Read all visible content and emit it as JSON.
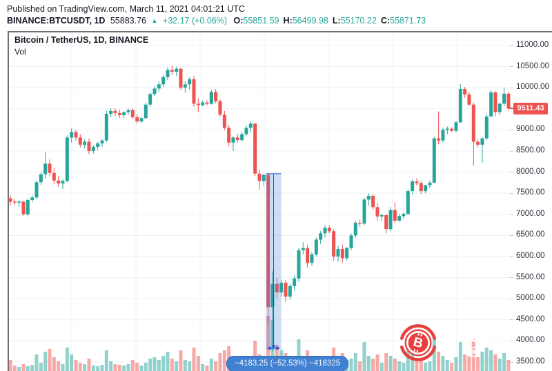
{
  "header": {
    "published": "Published on TradingView.com, March 11, 2021 04:01:21 UTC",
    "ticker": {
      "symbol_interval": "BINANCE:BTCUSDT, 1D",
      "last": "55883.76",
      "direction": "▲",
      "change": "+32.17 (+0.06%)",
      "ohlc": [
        {
          "label": "O:",
          "value": "55851.59"
        },
        {
          "label": "H:",
          "value": "56499.98"
        },
        {
          "label": "L:",
          "value": "55170.22"
        },
        {
          "label": "C:",
          "value": "55871.73"
        }
      ]
    }
  },
  "chart": {
    "title": "Bitcoin / TetherUS, 1D, BINANCE",
    "indicator_label": "Vol",
    "price_tag": {
      "value": "9511.43",
      "price": 9511.43,
      "color": "#ef5350"
    },
    "measure_tooltip": {
      "text": "−4183.25 (−52.53%) −418325",
      "bg": "#4181d2"
    },
    "watermark": {
      "text_primary": "Bitcoin",
      "text_secondary": "区",
      "logo": "bitcoin-logo",
      "logo_color": "#e9403d"
    },
    "colors": {
      "up": "#26a69a",
      "down": "#ef5350",
      "vol_up": "rgba(38,166,154,0.5)",
      "vol_down": "rgba(239,83,80,0.5)",
      "grid": "#eef0f4",
      "tag_red": "#ef5350",
      "measure_fill": "rgba(70,130,216,0.27)",
      "measure_line": "#1d4fc4",
      "text": "#131722"
    }
  },
  "chart_data": {
    "type": "candlestick",
    "symbol": "BTCUSDT",
    "interval": "1D",
    "exchange": "BINANCE",
    "title": "Bitcoin / TetherUS, 1D, BINANCE",
    "y_axis": {
      "side": "right",
      "grid": true,
      "ticks": [
        {
          "price": 11000,
          "label": "11000.00"
        },
        {
          "price": 10500,
          "label": "10500.00"
        },
        {
          "price": 10000,
          "label": "10000.00"
        },
        {
          "price": 9500,
          "label": ""
        },
        {
          "price": 9000,
          "label": "9000.00"
        },
        {
          "price": 8500,
          "label": "8500.00"
        },
        {
          "price": 8000,
          "label": "8000.00"
        },
        {
          "price": 7500,
          "label": "7500.00"
        },
        {
          "price": 7000,
          "label": "7000.00"
        },
        {
          "price": 6500,
          "label": "6500.00"
        },
        {
          "price": 6000,
          "label": "6000.00"
        },
        {
          "price": 5500,
          "label": "5500.00"
        },
        {
          "price": 5000,
          "label": "5000.00"
        },
        {
          "price": 4500,
          "label": "4500.00"
        },
        {
          "price": 4000,
          "label": "4000.00"
        },
        {
          "price": 3500,
          "label": "3500.00"
        }
      ]
    },
    "last_close": 9511.43,
    "measure": {
      "from_index": 59,
      "to_index": 61,
      "from_price": 7963.5,
      "to_price": 3780.25,
      "change": "−4183.25",
      "change_pct": "−52.53%",
      "extra": "−418325"
    },
    "candles": [
      [
        7380,
        7450,
        7200,
        7300
      ],
      [
        7300,
        7360,
        7220,
        7280
      ],
      [
        7280,
        7330,
        7180,
        7300
      ],
      [
        7300,
        7320,
        6960,
        7000
      ],
      [
        7000,
        7380,
        6950,
        7340
      ],
      [
        7340,
        7450,
        7290,
        7400
      ],
      [
        7400,
        7800,
        7360,
        7760
      ],
      [
        7760,
        8000,
        7700,
        7950
      ],
      [
        7950,
        8480,
        7850,
        8200
      ],
      [
        8200,
        8300,
        7900,
        7980
      ],
      [
        7980,
        8100,
        7720,
        7800
      ],
      [
        7800,
        7900,
        7650,
        7730
      ],
      [
        7730,
        7830,
        7600,
        7790
      ],
      [
        7790,
        8870,
        7760,
        8820
      ],
      [
        8820,
        9030,
        8700,
        8950
      ],
      [
        8950,
        9000,
        8750,
        8820
      ],
      [
        8820,
        8900,
        8590,
        8650
      ],
      [
        8650,
        8780,
        8560,
        8720
      ],
      [
        8720,
        8800,
        8420,
        8500
      ],
      [
        8500,
        8640,
        8440,
        8600
      ],
      [
        8600,
        8720,
        8520,
        8680
      ],
      [
        8680,
        8780,
        8600,
        8750
      ],
      [
        8750,
        9460,
        8720,
        9380
      ],
      [
        9380,
        9520,
        9300,
        9450
      ],
      [
        9450,
        9510,
        9330,
        9400
      ],
      [
        9400,
        9480,
        9290,
        9350
      ],
      [
        9350,
        9440,
        9280,
        9420
      ],
      [
        9420,
        9500,
        9360,
        9470
      ],
      [
        9470,
        9510,
        9250,
        9300
      ],
      [
        9300,
        9380,
        9150,
        9200
      ],
      [
        9200,
        9310,
        9170,
        9280
      ],
      [
        9280,
        9650,
        9260,
        9600
      ],
      [
        9600,
        9900,
        9550,
        9850
      ],
      [
        9850,
        10050,
        9800,
        9980
      ],
      [
        9980,
        10150,
        9900,
        10080
      ],
      [
        10080,
        10300,
        10020,
        10250
      ],
      [
        10250,
        10480,
        10180,
        10420
      ],
      [
        10420,
        10530,
        10300,
        10380
      ],
      [
        10380,
        10500,
        10280,
        10450
      ],
      [
        10450,
        10470,
        9950,
        10000
      ],
      [
        10000,
        10150,
        9880,
        10080
      ],
      [
        10080,
        10250,
        9960,
        10200
      ],
      [
        10200,
        10280,
        9550,
        9620
      ],
      [
        9620,
        9750,
        9420,
        9590
      ],
      [
        9590,
        9700,
        9560,
        9650
      ],
      [
        9650,
        9700,
        9580,
        9620
      ],
      [
        9620,
        9950,
        9600,
        9900
      ],
      [
        9900,
        9970,
        9630,
        9680
      ],
      [
        9680,
        9720,
        9310,
        9360
      ],
      [
        9360,
        9450,
        8990,
        9050
      ],
      [
        9050,
        9120,
        8610,
        8700
      ],
      [
        8700,
        8850,
        8500,
        8820
      ],
      [
        8820,
        8900,
        8700,
        8760
      ],
      [
        8760,
        8950,
        8720,
        8900
      ],
      [
        8900,
        9100,
        8850,
        9050
      ],
      [
        9050,
        9200,
        8950,
        9150
      ],
      [
        9150,
        9160,
        7900,
        7965
      ],
      [
        7965,
        8050,
        7585,
        7790
      ],
      [
        7790,
        7960,
        7680,
        7935
      ],
      [
        7935,
        7970,
        4410,
        4800
      ],
      [
        4800,
        5650,
        3750,
        5350
      ],
      [
        5350,
        5500,
        5000,
        5150
      ],
      [
        5150,
        5450,
        5050,
        5380
      ],
      [
        5380,
        5450,
        4930,
        5050
      ],
      [
        5050,
        5350,
        4980,
        5300
      ],
      [
        5300,
        5550,
        5200,
        5480
      ],
      [
        5480,
        6200,
        5400,
        6150
      ],
      [
        6150,
        6340,
        6050,
        6200
      ],
      [
        6200,
        6280,
        5740,
        5850
      ],
      [
        5850,
        6100,
        5780,
        6050
      ],
      [
        6050,
        6450,
        6000,
        6400
      ],
      [
        6400,
        6600,
        6300,
        6550
      ],
      [
        6550,
        6740,
        6450,
        6680
      ],
      [
        6680,
        6740,
        6550,
        6600
      ],
      [
        6600,
        6650,
        5900,
        6000
      ],
      [
        6000,
        6250,
        5880,
        6180
      ],
      [
        6180,
        6280,
        5850,
        5960
      ],
      [
        5960,
        6230,
        5900,
        6200
      ],
      [
        6200,
        6550,
        6150,
        6500
      ],
      [
        6500,
        6850,
        6450,
        6800
      ],
      [
        6800,
        6880,
        6700,
        6780
      ],
      [
        6780,
        7390,
        6750,
        7350
      ],
      [
        7350,
        7500,
        7200,
        7440
      ],
      [
        7440,
        7480,
        7100,
        7170
      ],
      [
        7170,
        7280,
        6850,
        6950
      ],
      [
        6950,
        7020,
        6850,
        6980
      ],
      [
        6980,
        7000,
        6550,
        6650
      ],
      [
        6650,
        7170,
        6600,
        7100
      ],
      [
        7100,
        7280,
        6790,
        6850
      ],
      [
        6850,
        7010,
        6820,
        6960
      ],
      [
        6960,
        7050,
        6900,
        7010
      ],
      [
        7010,
        7600,
        6980,
        7550
      ],
      [
        7550,
        7820,
        7480,
        7780
      ],
      [
        7780,
        7850,
        7680,
        7740
      ],
      [
        7740,
        7790,
        7480,
        7550
      ],
      [
        7550,
        7700,
        7500,
        7690
      ],
      [
        7690,
        7800,
        7620,
        7750
      ],
      [
        7750,
        8830,
        7740,
        8800
      ],
      [
        8800,
        9440,
        8660,
        8750
      ],
      [
        8750,
        9050,
        8700,
        9000
      ],
      [
        9000,
        9080,
        8900,
        9030
      ],
      [
        9030,
        9060,
        8950,
        8980
      ],
      [
        8980,
        9210,
        8950,
        9180
      ],
      [
        9180,
        10090,
        9160,
        9970
      ],
      [
        9970,
        10020,
        9760,
        9840
      ],
      [
        9840,
        9900,
        9570,
        9600
      ],
      [
        9600,
        9650,
        8150,
        8720
      ],
      [
        8720,
        8780,
        8590,
        8650
      ],
      [
        8650,
        8830,
        8230,
        8800
      ],
      [
        8800,
        9370,
        8760,
        9320
      ],
      [
        9320,
        9940,
        9300,
        9890
      ],
      [
        9890,
        9920,
        9320,
        9420
      ],
      [
        9420,
        9650,
        9350,
        9620
      ],
      [
        9620,
        10000,
        9560,
        9860
      ],
      [
        9860,
        9900,
        9480,
        9511.43
      ]
    ],
    "volumes": [
      16,
      8,
      6,
      10,
      7,
      9,
      24,
      12,
      28,
      32,
      20,
      14,
      10,
      34,
      24,
      16,
      12,
      10,
      18,
      8,
      7,
      9,
      30,
      14,
      10,
      9,
      8,
      10,
      16,
      12,
      8,
      12,
      18,
      20,
      16,
      22,
      28,
      18,
      14,
      30,
      16,
      14,
      34,
      22,
      10,
      8,
      18,
      14,
      26,
      30,
      36,
      20,
      12,
      14,
      18,
      16,
      44,
      24,
      18,
      80,
      74,
      38,
      30,
      26,
      22,
      20,
      46,
      22,
      30,
      16,
      20,
      18,
      22,
      12,
      34,
      20,
      26,
      16,
      18,
      26,
      14,
      42,
      22,
      18,
      24,
      12,
      26,
      22,
      18,
      14,
      12,
      30,
      26,
      14,
      16,
      12,
      14,
      50,
      28,
      22,
      16,
      12,
      20,
      42,
      24,
      22,
      46,
      20,
      28,
      34,
      30,
      24,
      18,
      26,
      16
    ]
  }
}
